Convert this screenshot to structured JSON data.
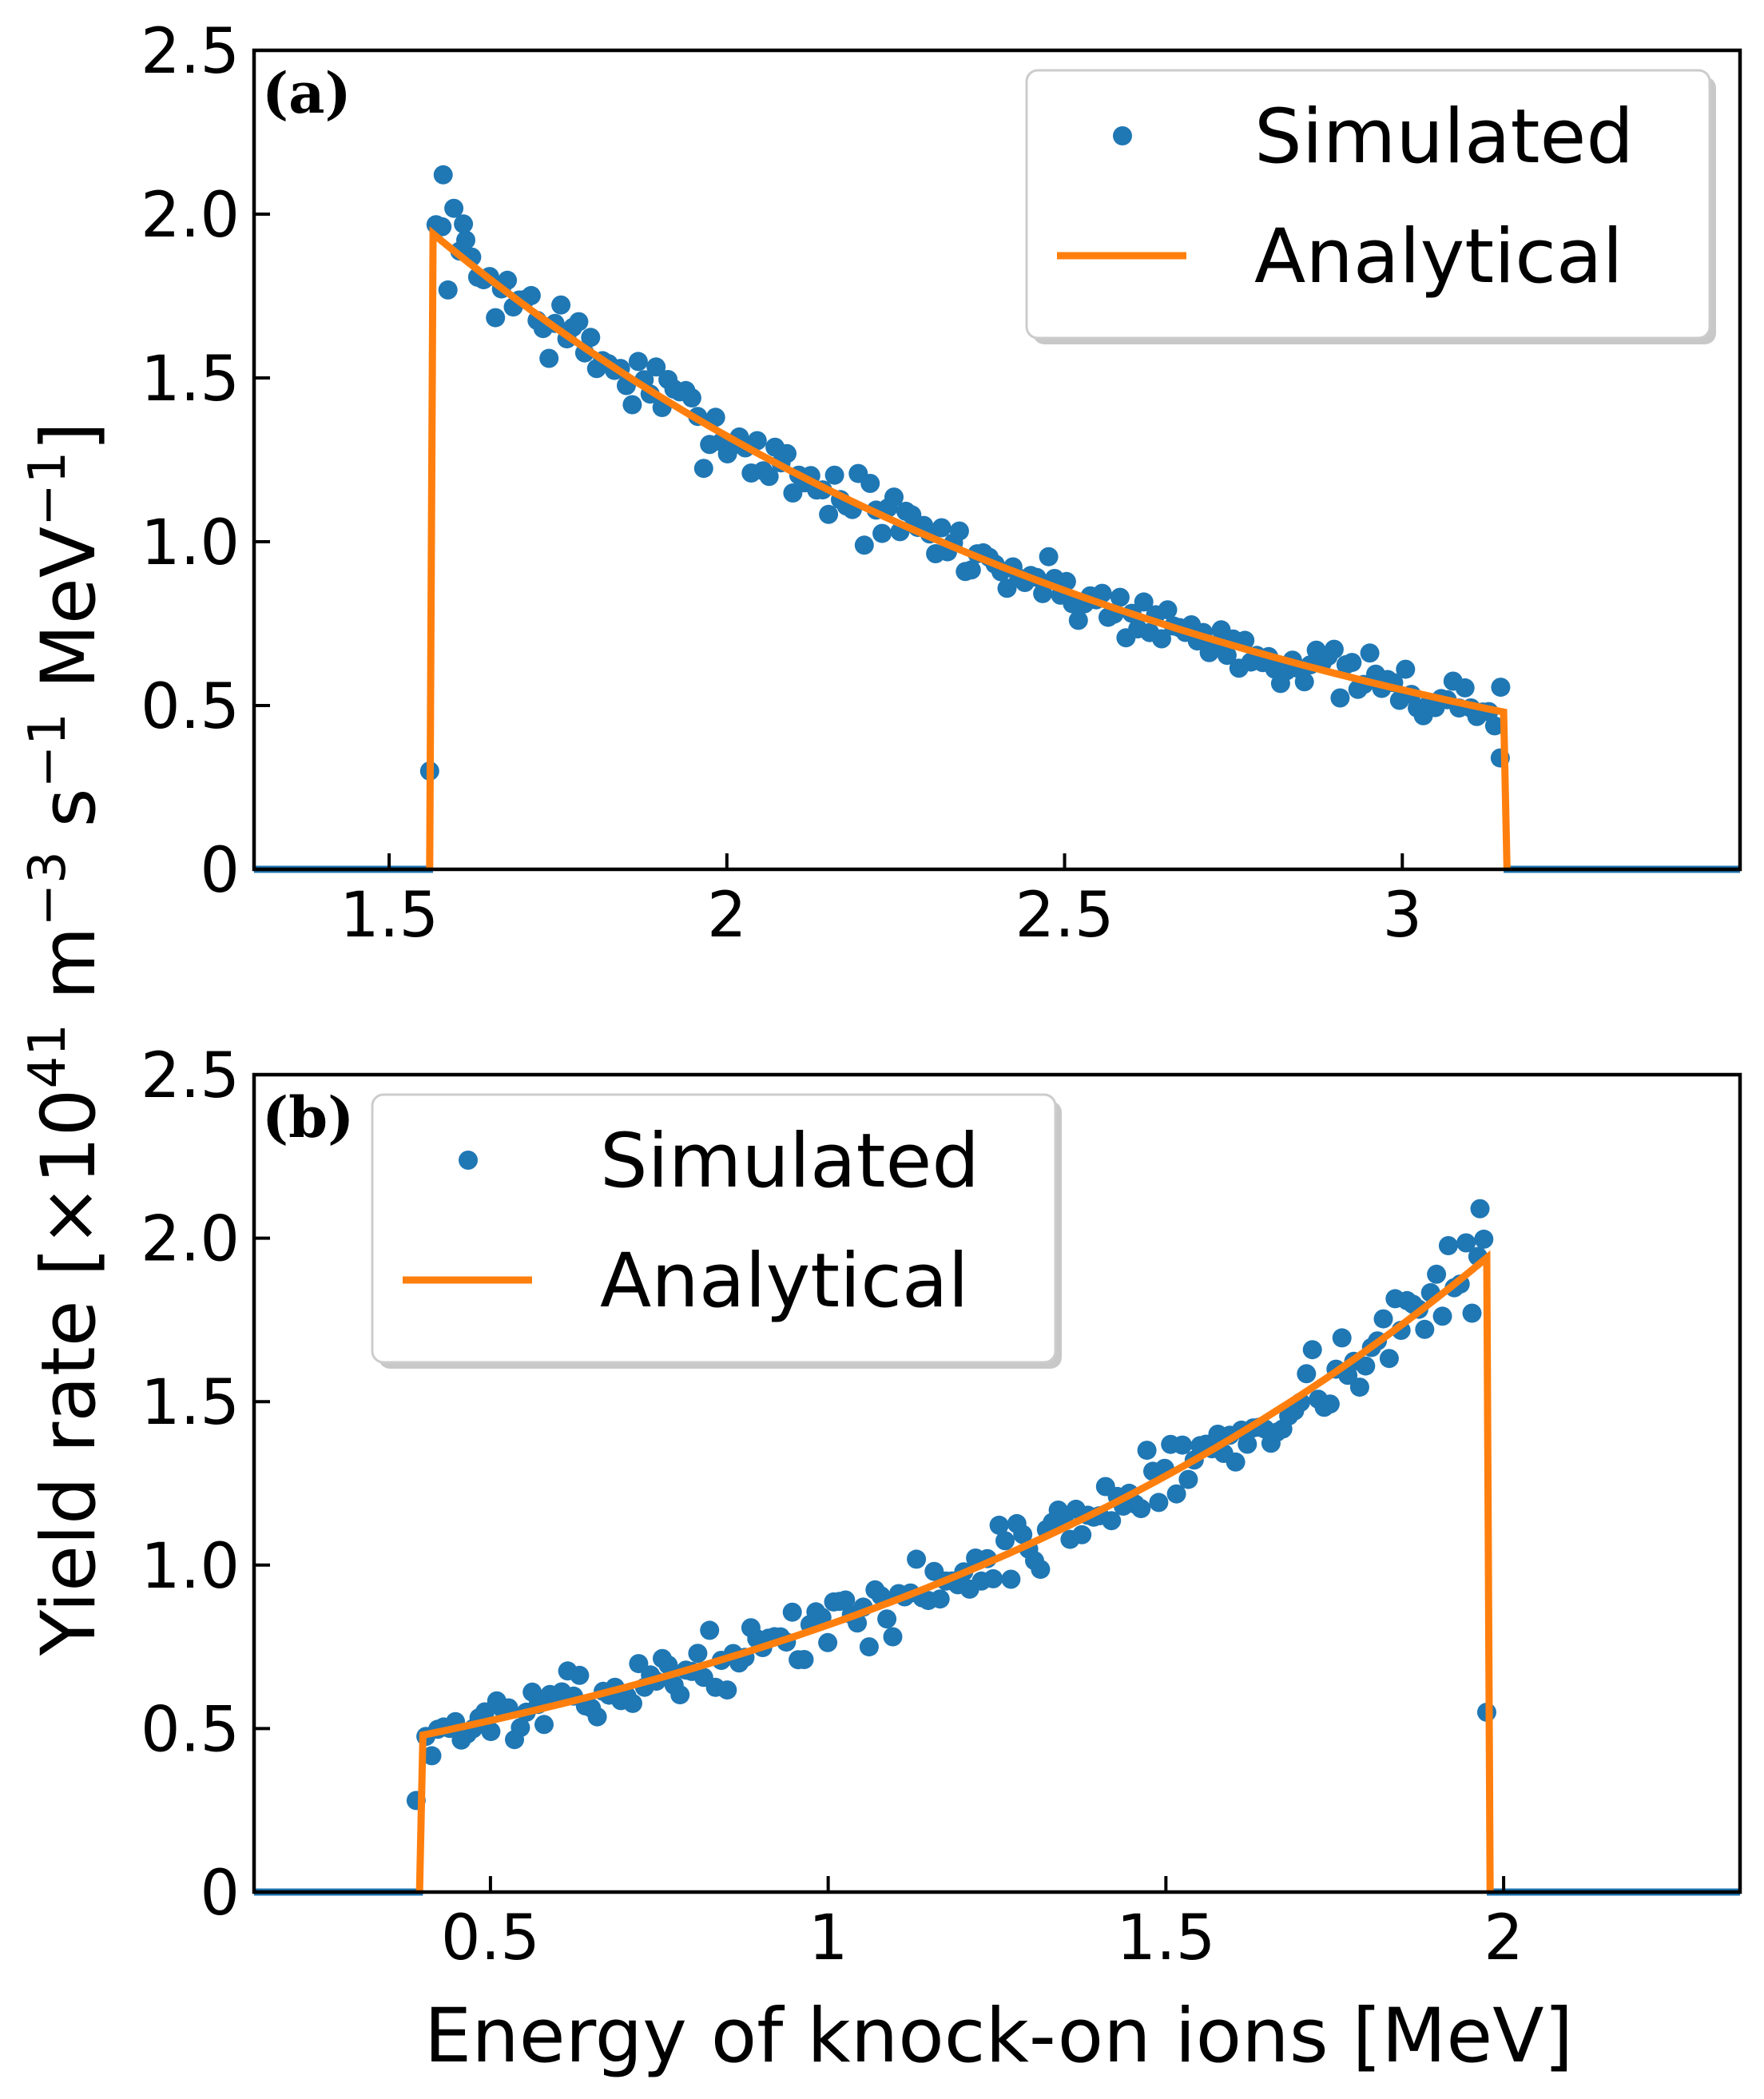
{
  "colors": {
    "simulated": "#1f77b4",
    "analytical": "#ff7f0e",
    "axis": "#000000",
    "legend_edge": "#cccccc"
  },
  "ylabel_parts": {
    "pre": "Yield rate [×10",
    "exp1": "41",
    "m": " m",
    "exp2": "−3",
    "s": " s",
    "exp3": "−1",
    "mev": " MeV",
    "exp4": "−1",
    "post": "]"
  },
  "xlabel": "Energy of knock-on ions [MeV]",
  "chart_data": [
    {
      "type": "scatter+line",
      "panel_label": "(a)",
      "legend": {
        "simulated": "Simulated",
        "analytical": "Analytical",
        "location": "upper right"
      },
      "xlim": [
        1.3,
        3.5
      ],
      "ylim": [
        0,
        2.5
      ],
      "xticks": [
        {
          "v": 1.5,
          "label": "1.5"
        },
        {
          "v": 2,
          "label": "2"
        },
        {
          "v": 2.5,
          "label": "2.5"
        },
        {
          "v": 3,
          "label": "3"
        }
      ],
      "yticks": [
        {
          "v": 0,
          "label": "0"
        },
        {
          "v": 0.5,
          "label": "0.5"
        },
        {
          "v": 1.0,
          "label": "1.0"
        },
        {
          "v": 1.5,
          "label": "1.5"
        },
        {
          "v": 2.0,
          "label": "2.0"
        },
        {
          "v": 2.5,
          "label": "2.5"
        }
      ],
      "range": [
        1.565,
        3.15
      ],
      "peak": 1.94,
      "end": 0.48,
      "shape": "falling",
      "seed": 7,
      "outliers": [
        [
          1.56,
          0.3
        ],
        [
          1.58,
          2.12
        ],
        [
          1.61,
          1.97
        ],
        [
          3.145,
          0.34
        ]
      ]
    },
    {
      "type": "scatter+line",
      "panel_label": "(b)",
      "legend": {
        "simulated": "Simulated",
        "analytical": "Analytical",
        "location": "upper left"
      },
      "xlim": [
        0.15,
        2.35
      ],
      "ylim": [
        0,
        2.5
      ],
      "xticks": [
        {
          "v": 0.5,
          "label": "0.5"
        },
        {
          "v": 1,
          "label": "1"
        },
        {
          "v": 1.5,
          "label": "1.5"
        },
        {
          "v": 2,
          "label": "2"
        }
      ],
      "yticks": [
        {
          "v": 0,
          "label": "0"
        },
        {
          "v": 0.5,
          "label": "0.5"
        },
        {
          "v": 1.0,
          "label": "1.0"
        },
        {
          "v": 1.5,
          "label": "1.5"
        },
        {
          "v": 2.0,
          "label": "2.0"
        },
        {
          "v": 2.5,
          "label": "2.5"
        }
      ],
      "range": [
        0.4,
        1.975
      ],
      "peak": 1.94,
      "end": 0.48,
      "shape": "rising",
      "seed": 13,
      "outliers": [
        [
          0.39,
          0.28
        ],
        [
          1.965,
          2.09
        ],
        [
          1.975,
          0.55
        ]
      ]
    }
  ]
}
